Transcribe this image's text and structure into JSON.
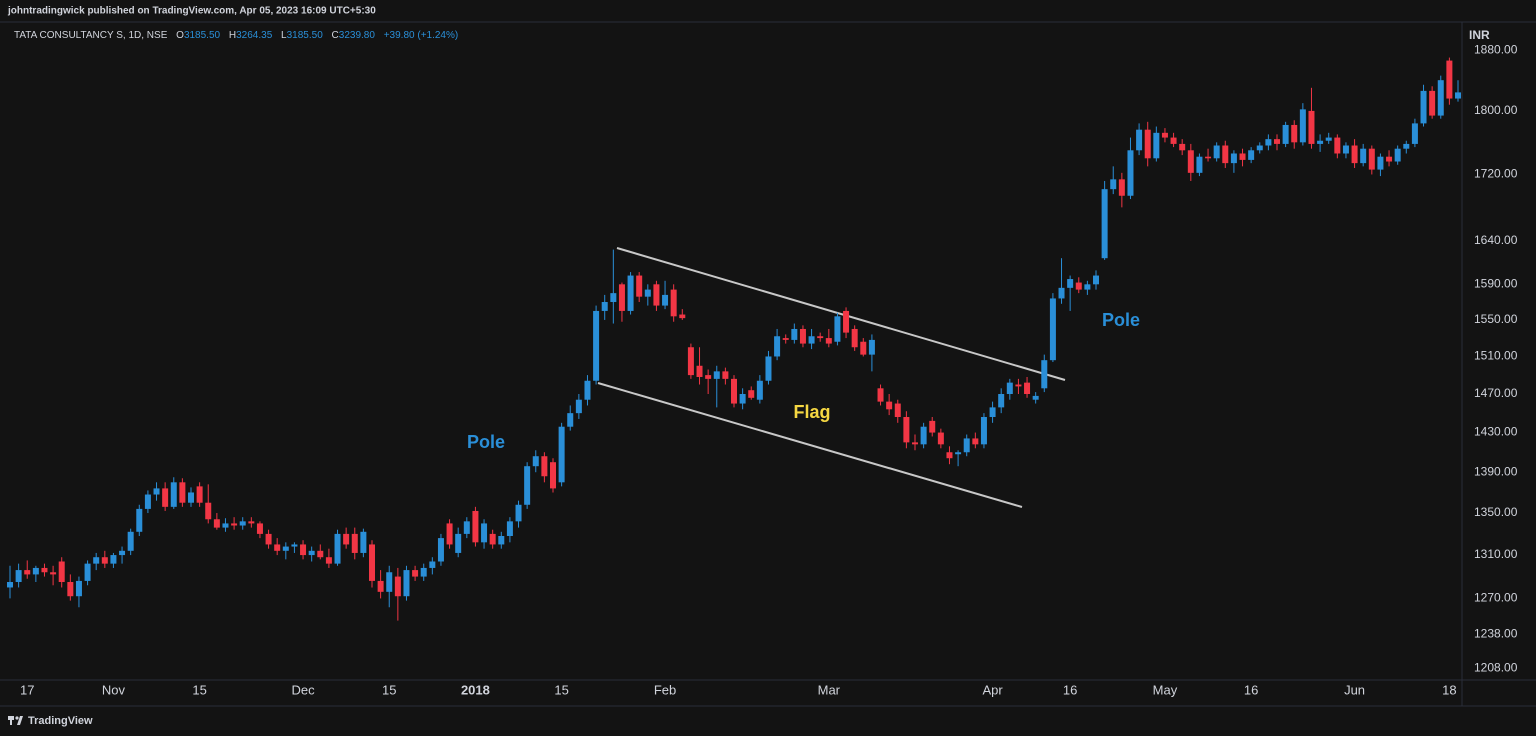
{
  "chart_data": {
    "type": "candlestick",
    "published": "johntradingwick published on TradingView.com, Apr 05, 2023 16:09 UTC+5:30",
    "legend": {
      "symbol": "TATA CONSULTANCY S, 1D, NSE",
      "o": "O",
      "open": "3185.50",
      "h": "H",
      "high": "3264.35",
      "l": "L",
      "low": "3185.50",
      "c": "C",
      "close": "3239.80",
      "change": "+39.80 (+1.24%)"
    },
    "currency": "INR",
    "brand": "TradingView",
    "annotations": [
      "Pole",
      "Flag",
      "Pole"
    ],
    "up_color": "#2a8fd8",
    "down_color": "#f23645",
    "log": true,
    "grid": false,
    "ylim": [
      1198,
      1910
    ],
    "yticks": [
      {
        "value": 1208,
        "label": "1208.00"
      },
      {
        "value": 1238,
        "label": "1238.00"
      },
      {
        "value": 1270,
        "label": "1270.00"
      },
      {
        "value": 1310,
        "label": "1310.00"
      },
      {
        "value": 1350,
        "label": "1350.00"
      },
      {
        "value": 1390,
        "label": "1390.00"
      },
      {
        "value": 1430,
        "label": "1430.00"
      },
      {
        "value": 1470,
        "label": "1470.00"
      },
      {
        "value": 1510,
        "label": "1510.00"
      },
      {
        "value": 1550,
        "label": "1550.00"
      },
      {
        "value": 1590,
        "label": "1590.00"
      },
      {
        "value": 1640,
        "label": "1640.00"
      },
      {
        "value": 1720,
        "label": "1720.00"
      },
      {
        "value": 1800,
        "label": "1800.00"
      },
      {
        "value": 1880,
        "label": "1880.00"
      }
    ],
    "categories": [
      null,
      null,
      "17",
      null,
      null,
      null,
      null,
      null,
      null,
      null,
      null,
      null,
      "Nov",
      null,
      null,
      null,
      null,
      null,
      null,
      null,
      null,
      null,
      "15",
      null,
      null,
      null,
      null,
      null,
      null,
      null,
      null,
      null,
      null,
      null,
      "Dec",
      null,
      null,
      null,
      null,
      null,
      null,
      null,
      null,
      null,
      "15",
      null,
      null,
      null,
      null,
      null,
      null,
      null,
      null,
      null,
      "2018",
      null,
      null,
      null,
      null,
      null,
      null,
      null,
      null,
      null,
      "15",
      null,
      null,
      null,
      null,
      null,
      null,
      null,
      null,
      null,
      null,
      null,
      "Feb",
      null,
      null,
      null,
      null,
      null,
      null,
      null,
      null,
      null,
      null,
      null,
      null,
      null,
      null,
      null,
      null,
      null,
      null,
      "Mar",
      null,
      null,
      null,
      null,
      null,
      null,
      null,
      null,
      null,
      null,
      null,
      null,
      null,
      null,
      null,
      null,
      null,
      null,
      "Apr",
      null,
      null,
      null,
      null,
      null,
      null,
      null,
      null,
      "16",
      null,
      null,
      null,
      null,
      null,
      null,
      null,
      null,
      null,
      null,
      "May",
      null,
      null,
      null,
      null,
      null,
      null,
      null,
      null,
      null,
      "16",
      null,
      null,
      null,
      null,
      null,
      null,
      null,
      null,
      null,
      null,
      null,
      "Jun",
      null,
      null,
      null,
      null,
      null,
      null,
      null,
      null,
      null,
      null,
      "18",
      null
    ],
    "ohlc": [
      [
        1280,
        1300,
        1270,
        1285
      ],
      [
        1285,
        1302,
        1280,
        1296
      ],
      [
        1296,
        1305,
        1288,
        1292
      ],
      [
        1292,
        1300,
        1285,
        1298
      ],
      [
        1298,
        1302,
        1290,
        1294
      ],
      [
        1294,
        1300,
        1282,
        1292
      ],
      [
        1304,
        1308,
        1280,
        1285
      ],
      [
        1285,
        1292,
        1268,
        1272
      ],
      [
        1272,
        1290,
        1262,
        1286
      ],
      [
        1286,
        1305,
        1282,
        1302
      ],
      [
        1302,
        1312,
        1296,
        1308
      ],
      [
        1308,
        1314,
        1298,
        1302
      ],
      [
        1302,
        1312,
        1298,
        1310
      ],
      [
        1310,
        1318,
        1302,
        1314
      ],
      [
        1314,
        1335,
        1310,
        1332
      ],
      [
        1332,
        1358,
        1328,
        1354
      ],
      [
        1354,
        1372,
        1350,
        1368
      ],
      [
        1368,
        1380,
        1362,
        1374
      ],
      [
        1374,
        1380,
        1352,
        1356
      ],
      [
        1356,
        1385,
        1354,
        1380
      ],
      [
        1380,
        1384,
        1356,
        1360
      ],
      [
        1360,
        1375,
        1356,
        1370
      ],
      [
        1376,
        1380,
        1356,
        1360
      ],
      [
        1360,
        1378,
        1340,
        1344
      ],
      [
        1344,
        1350,
        1334,
        1336
      ],
      [
        1336,
        1345,
        1332,
        1340
      ],
      [
        1340,
        1346,
        1334,
        1338
      ],
      [
        1338,
        1346,
        1334,
        1342
      ],
      [
        1342,
        1346,
        1336,
        1340
      ],
      [
        1340,
        1342,
        1326,
        1330
      ],
      [
        1330,
        1334,
        1316,
        1320
      ],
      [
        1320,
        1326,
        1310,
        1314
      ],
      [
        1314,
        1322,
        1306,
        1318
      ],
      [
        1318,
        1322,
        1312,
        1320
      ],
      [
        1320,
        1324,
        1306,
        1310
      ],
      [
        1310,
        1318,
        1304,
        1314
      ],
      [
        1314,
        1320,
        1306,
        1308
      ],
      [
        1308,
        1316,
        1298,
        1302
      ],
      [
        1302,
        1334,
        1300,
        1330
      ],
      [
        1330,
        1336,
        1316,
        1320
      ],
      [
        1330,
        1336,
        1306,
        1312
      ],
      [
        1312,
        1335,
        1308,
        1332
      ],
      [
        1320,
        1324,
        1280,
        1286
      ],
      [
        1286,
        1296,
        1270,
        1276
      ],
      [
        1276,
        1300,
        1262,
        1294
      ],
      [
        1290,
        1298,
        1250,
        1272
      ],
      [
        1272,
        1300,
        1268,
        1296
      ],
      [
        1296,
        1300,
        1286,
        1290
      ],
      [
        1290,
        1302,
        1286,
        1298
      ],
      [
        1298,
        1308,
        1292,
        1304
      ],
      [
        1304,
        1330,
        1300,
        1326
      ],
      [
        1340,
        1344,
        1316,
        1320
      ],
      [
        1312,
        1336,
        1308,
        1330
      ],
      [
        1330,
        1346,
        1326,
        1342
      ],
      [
        1352,
        1356,
        1318,
        1322
      ],
      [
        1322,
        1344,
        1316,
        1340
      ],
      [
        1330,
        1334,
        1316,
        1320
      ],
      [
        1320,
        1332,
        1316,
        1328
      ],
      [
        1328,
        1346,
        1322,
        1342
      ],
      [
        1342,
        1362,
        1336,
        1358
      ],
      [
        1358,
        1400,
        1354,
        1396
      ],
      [
        1396,
        1412,
        1390,
        1406
      ],
      [
        1406,
        1410,
        1380,
        1386
      ],
      [
        1400,
        1404,
        1370,
        1374
      ],
      [
        1380,
        1440,
        1376,
        1436
      ],
      [
        1436,
        1458,
        1432,
        1450
      ],
      [
        1450,
        1470,
        1444,
        1464
      ],
      [
        1464,
        1490,
        1458,
        1484
      ],
      [
        1484,
        1566,
        1480,
        1560
      ],
      [
        1560,
        1578,
        1550,
        1570
      ],
      [
        1570,
        1630,
        1546,
        1580
      ],
      [
        1590,
        1592,
        1548,
        1560
      ],
      [
        1560,
        1604,
        1556,
        1600
      ],
      [
        1600,
        1604,
        1570,
        1576
      ],
      [
        1576,
        1590,
        1566,
        1584
      ],
      [
        1590,
        1594,
        1560,
        1566
      ],
      [
        1566,
        1594,
        1562,
        1578
      ],
      [
        1584,
        1590,
        1548,
        1554
      ],
      [
        1556,
        1562,
        1550,
        1552
      ],
      [
        1520,
        1524,
        1486,
        1490
      ],
      [
        1500,
        1520,
        1480,
        1488
      ],
      [
        1490,
        1496,
        1470,
        1486
      ],
      [
        1486,
        1500,
        1456,
        1494
      ],
      [
        1494,
        1498,
        1480,
        1486
      ],
      [
        1486,
        1490,
        1456,
        1460
      ],
      [
        1460,
        1476,
        1454,
        1470
      ],
      [
        1474,
        1478,
        1464,
        1466
      ],
      [
        1464,
        1490,
        1460,
        1484
      ],
      [
        1484,
        1516,
        1480,
        1510
      ],
      [
        1510,
        1540,
        1506,
        1532
      ],
      [
        1530,
        1534,
        1524,
        1528
      ],
      [
        1528,
        1546,
        1524,
        1540
      ],
      [
        1540,
        1544,
        1520,
        1524
      ],
      [
        1524,
        1540,
        1518,
        1532
      ],
      [
        1532,
        1536,
        1526,
        1530
      ],
      [
        1530,
        1540,
        1520,
        1524
      ],
      [
        1526,
        1558,
        1522,
        1554
      ],
      [
        1560,
        1564,
        1530,
        1536
      ],
      [
        1540,
        1544,
        1516,
        1520
      ],
      [
        1526,
        1530,
        1510,
        1512
      ],
      [
        1512,
        1534,
        1494,
        1528
      ],
      [
        1476,
        1480,
        1458,
        1462
      ],
      [
        1462,
        1470,
        1448,
        1454
      ],
      [
        1460,
        1464,
        1440,
        1446
      ],
      [
        1446,
        1452,
        1414,
        1420
      ],
      [
        1420,
        1428,
        1412,
        1418
      ],
      [
        1418,
        1440,
        1414,
        1436
      ],
      [
        1442,
        1446,
        1426,
        1430
      ],
      [
        1430,
        1434,
        1414,
        1418
      ],
      [
        1410,
        1416,
        1398,
        1404
      ],
      [
        1408,
        1412,
        1396,
        1410
      ],
      [
        1410,
        1428,
        1406,
        1424
      ],
      [
        1424,
        1430,
        1414,
        1418
      ],
      [
        1418,
        1450,
        1414,
        1446
      ],
      [
        1446,
        1462,
        1440,
        1456
      ],
      [
        1456,
        1476,
        1450,
        1470
      ],
      [
        1470,
        1486,
        1464,
        1482
      ],
      [
        1480,
        1486,
        1470,
        1478
      ],
      [
        1482,
        1488,
        1466,
        1470
      ],
      [
        1464,
        1472,
        1460,
        1468
      ],
      [
        1476,
        1512,
        1472,
        1506
      ],
      [
        1506,
        1580,
        1504,
        1574
      ],
      [
        1574,
        1620,
        1568,
        1586
      ],
      [
        1586,
        1600,
        1560,
        1596
      ],
      [
        1592,
        1598,
        1580,
        1584
      ],
      [
        1584,
        1594,
        1578,
        1590
      ],
      [
        1590,
        1606,
        1584,
        1600
      ],
      [
        1620,
        1712,
        1618,
        1702
      ],
      [
        1702,
        1730,
        1696,
        1714
      ],
      [
        1714,
        1722,
        1680,
        1694
      ],
      [
        1694,
        1766,
        1690,
        1750
      ],
      [
        1750,
        1784,
        1744,
        1776
      ],
      [
        1776,
        1786,
        1730,
        1740
      ],
      [
        1740,
        1780,
        1736,
        1772
      ],
      [
        1772,
        1778,
        1760,
        1766
      ],
      [
        1766,
        1772,
        1754,
        1758
      ],
      [
        1758,
        1764,
        1744,
        1750
      ],
      [
        1750,
        1758,
        1712,
        1722
      ],
      [
        1722,
        1746,
        1718,
        1742
      ],
      [
        1742,
        1752,
        1736,
        1740
      ],
      [
        1740,
        1760,
        1736,
        1756
      ],
      [
        1756,
        1762,
        1728,
        1734
      ],
      [
        1734,
        1750,
        1722,
        1746
      ],
      [
        1746,
        1752,
        1730,
        1738
      ],
      [
        1738,
        1754,
        1734,
        1750
      ],
      [
        1750,
        1760,
        1746,
        1756
      ],
      [
        1756,
        1770,
        1750,
        1764
      ],
      [
        1764,
        1770,
        1750,
        1758
      ],
      [
        1758,
        1786,
        1754,
        1782
      ],
      [
        1782,
        1788,
        1752,
        1760
      ],
      [
        1760,
        1810,
        1756,
        1802
      ],
      [
        1800,
        1830,
        1752,
        1758
      ],
      [
        1758,
        1770,
        1748,
        1762
      ],
      [
        1762,
        1772,
        1758,
        1766
      ],
      [
        1766,
        1770,
        1740,
        1746
      ],
      [
        1746,
        1760,
        1740,
        1756
      ],
      [
        1756,
        1764,
        1728,
        1734
      ],
      [
        1734,
        1758,
        1730,
        1752
      ],
      [
        1752,
        1756,
        1720,
        1726
      ],
      [
        1726,
        1746,
        1718,
        1742
      ],
      [
        1742,
        1750,
        1730,
        1736
      ],
      [
        1736,
        1756,
        1732,
        1752
      ],
      [
        1752,
        1762,
        1746,
        1758
      ],
      [
        1758,
        1790,
        1754,
        1784
      ],
      [
        1784,
        1834,
        1780,
        1826
      ],
      [
        1826,
        1832,
        1790,
        1794
      ],
      [
        1794,
        1846,
        1790,
        1840
      ],
      [
        1866,
        1870,
        1808,
        1816
      ],
      [
        1816,
        1840,
        1812,
        1824
      ]
    ]
  }
}
